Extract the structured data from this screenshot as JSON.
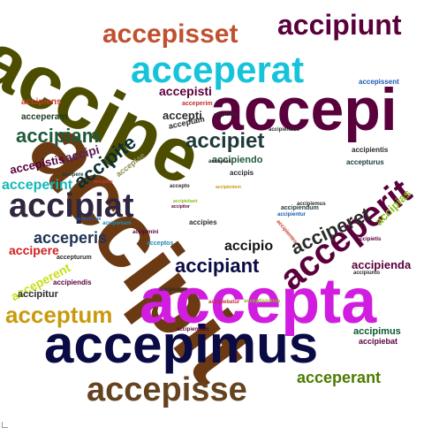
{
  "words": [
    {
      "text": "accipit",
      "color": "#6B3A12"
    },
    {
      "text": "accipe",
      "color": "#4D4D00"
    },
    {
      "text": "accepi",
      "color": "#5A003C"
    },
    {
      "text": "accepta",
      "color": "#D11DE0"
    },
    {
      "text": "accepimus",
      "color": "#0A0A45"
    },
    {
      "text": "accepisse",
      "color": "#654321"
    },
    {
      "text": "acceperat",
      "color": "#15C3DA"
    },
    {
      "text": "accepisset",
      "color": "#C0502F"
    },
    {
      "text": "accipiunt",
      "color": "#5A003C"
    },
    {
      "text": "acceperit",
      "color": "#5A003C"
    },
    {
      "text": "accipiat",
      "color": "#30263F"
    },
    {
      "text": "accipiet",
      "color": "#1E3A3A"
    },
    {
      "text": "acceptum",
      "color": "#C99A0C"
    },
    {
      "text": "acciperet",
      "color": "#2B2B2B"
    },
    {
      "text": "acceperant",
      "color": "#4D7A00"
    },
    {
      "text": "accipite",
      "color": "#0A2E2E"
    },
    {
      "text": "accipiant",
      "color": "#0A0A45"
    },
    {
      "text": "acceperis",
      "color": "#223355"
    },
    {
      "text": "accipiam",
      "color": "#1E5A3A"
    },
    {
      "text": "acceperint",
      "color": "#15B8B8"
    },
    {
      "text": "accepistis",
      "color": "#5A003C"
    },
    {
      "text": "acceperent",
      "color": "#C8E01A"
    },
    {
      "text": "accipio",
      "color": "#151515"
    },
    {
      "text": "accipienda",
      "color": "#5A003C"
    },
    {
      "text": "accepisti",
      "color": "#5A003C"
    },
    {
      "text": "accipere",
      "color": "#D02020"
    },
    {
      "text": "accipias",
      "color": "#8ABF1A"
    },
    {
      "text": "acceperam",
      "color": "#1E3A1E"
    },
    {
      "text": "accipiens",
      "color": "#C83A2A"
    },
    {
      "text": "accipi",
      "color": "#5A1E5A"
    },
    {
      "text": "accepti",
      "color": "#2B2B2B"
    },
    {
      "text": "accipitur",
      "color": "#2B2B2B"
    },
    {
      "text": "accipimus",
      "color": "#0A5A2E"
    },
    {
      "text": "accipiebat",
      "color": "#5A003C"
    },
    {
      "text": "accipiendo",
      "color": "#1E5A3A"
    },
    {
      "text": "accepturus",
      "color": "#1E3A3A"
    },
    {
      "text": "accipientis",
      "color": "#2B2B2B"
    },
    {
      "text": "accepissent",
      "color": "#1E5AB4"
    },
    {
      "text": "acceptam",
      "color": "#2B2B2B"
    },
    {
      "text": "acceperim",
      "color": "#C03030"
    },
    {
      "text": "acceptae",
      "color": "#8A8A4A"
    },
    {
      "text": "accipies",
      "color": "#2B2B2B"
    },
    {
      "text": "acceptos",
      "color": "#1E8AB4"
    },
    {
      "text": "accipiendis",
      "color": "#5A003C"
    },
    {
      "text": "accepturum",
      "color": "#2B2B2B"
    },
    {
      "text": "accipiunter",
      "color": "#2B2B2B"
    },
    {
      "text": "accipiendam",
      "color": "#5A003C"
    },
    {
      "text": "accipis",
      "color": "#2B2B2B"
    },
    {
      "text": "acceptas",
      "color": "#2B2B2B"
    },
    {
      "text": "accipietis",
      "color": "#5A003C"
    },
    {
      "text": "accipiunto",
      "color": "#2B2B2B"
    },
    {
      "text": "accipiebatur",
      "color": "#C03030"
    },
    {
      "text": "acceptissimus",
      "color": "#8ABF1A"
    },
    {
      "text": "accipientur",
      "color": "#1E5AB4"
    },
    {
      "text": "accipientes",
      "color": "#C83A2A"
    },
    {
      "text": "accipiemus",
      "color": "#2B2B2B"
    },
    {
      "text": "accipiendum",
      "color": "#1E3A3A"
    },
    {
      "text": "accipere",
      "color": "#1E3A3A"
    },
    {
      "text": "accepto",
      "color": "#2B2B2B"
    },
    {
      "text": "accipitor",
      "color": "#5A003C"
    },
    {
      "text": "accipiebant",
      "color": "#8ABF1A"
    },
    {
      "text": "acceptus",
      "color": "#C83A2A"
    },
    {
      "text": "accipimini",
      "color": "#5A003C"
    },
    {
      "text": "accipiebam",
      "color": "#1E8AB4"
    },
    {
      "text": "accipiendus",
      "color": "#2B2B2B"
    },
    {
      "text": "accipientem",
      "color": "#C99A0C"
    },
    {
      "text": "acceptorum",
      "color": "#1E5AB4"
    },
    {
      "text": "accipiuntur",
      "color": "#2B2B2B"
    }
  ]
}
